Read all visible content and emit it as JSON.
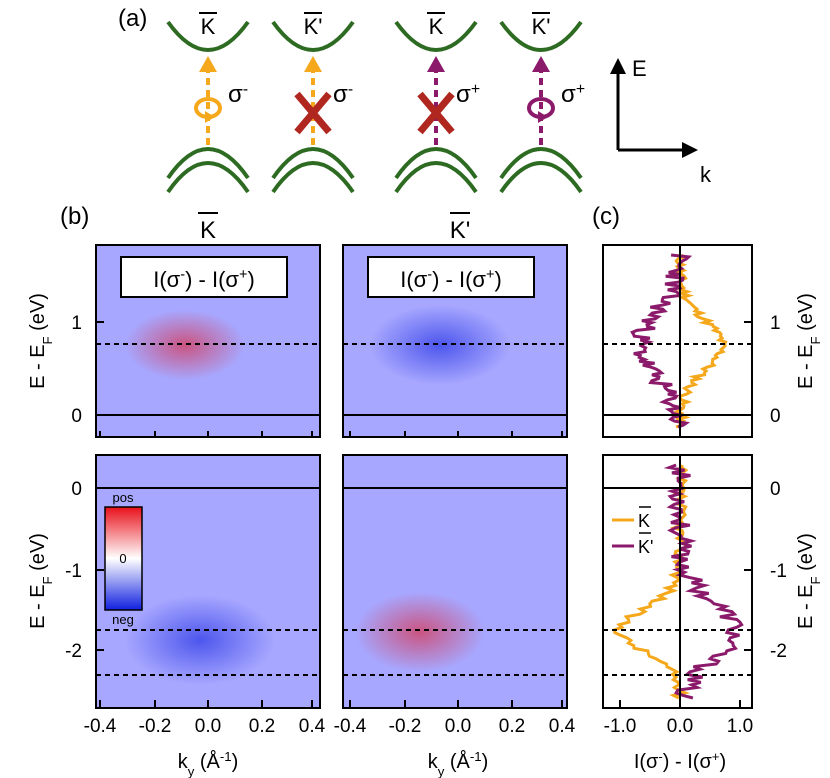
{
  "panel_a": {
    "label": "(a)",
    "columns": [
      {
        "valley": "K",
        "prime": false,
        "sigma": "σ",
        "sign": "-",
        "allowed": true,
        "color": "#f5a81c"
      },
      {
        "valley": "K",
        "prime": true,
        "sigma": "σ",
        "sign": "-",
        "allowed": false,
        "color": "#f5a81c"
      },
      {
        "valley": "K",
        "prime": false,
        "sigma": "σ",
        "sign": "+",
        "allowed": false,
        "color": "#8b1a6b"
      },
      {
        "valley": "K",
        "prime": true,
        "sigma": "σ",
        "sign": "+",
        "allowed": true,
        "color": "#8b1a6b"
      }
    ],
    "axes": {
      "e_label": "E",
      "k_label": "k"
    },
    "band_color": "#2e6b22",
    "cross_color": "#b0271f"
  },
  "panel_b": {
    "label": "(b)",
    "col_titles": [
      {
        "base": "K",
        "prime": ""
      },
      {
        "base": "K",
        "prime": "'"
      }
    ],
    "box_label": {
      "i1": "I(σ",
      "s1": "-",
      "mid": ") - I(σ",
      "s2": "+",
      "end": ")"
    },
    "x_ticks": [
      "-0.4",
      "-0.2",
      "0.0",
      "0.2",
      "0.4"
    ],
    "x_label": {
      "main": "k",
      "sub": "y",
      "unit": " (Å",
      "exp": "-1",
      "close": ")"
    },
    "y_label": {
      "main": "E - E",
      "sub": "F",
      "unit": " (eV)"
    },
    "top_y_ticks": [
      "1",
      "0"
    ],
    "bottom_y_ticks": [
      "0",
      "-1",
      "-2"
    ],
    "colorbar": {
      "top": "pos",
      "mid": "0",
      "bottom": "neg"
    }
  },
  "panel_c": {
    "label": "(c)",
    "x_ticks": [
      "-1.0",
      "0.0",
      "1.0"
    ],
    "x_label": {
      "a": "I(σ",
      "s1": "-",
      "b": ") - I(σ",
      "s2": "+",
      "c": ")"
    },
    "y_label": {
      "main": "E - E",
      "sub": "F",
      "unit": " (eV)"
    },
    "top_y_ticks": [
      "1",
      "0"
    ],
    "bottom_y_ticks": [
      "0",
      "-1",
      "-2"
    ],
    "legend": [
      {
        "label": "K",
        "prime": "",
        "color": "#f5a81c"
      },
      {
        "label": "K",
        "prime": "'",
        "color": "#8b1a6b"
      }
    ]
  }
}
